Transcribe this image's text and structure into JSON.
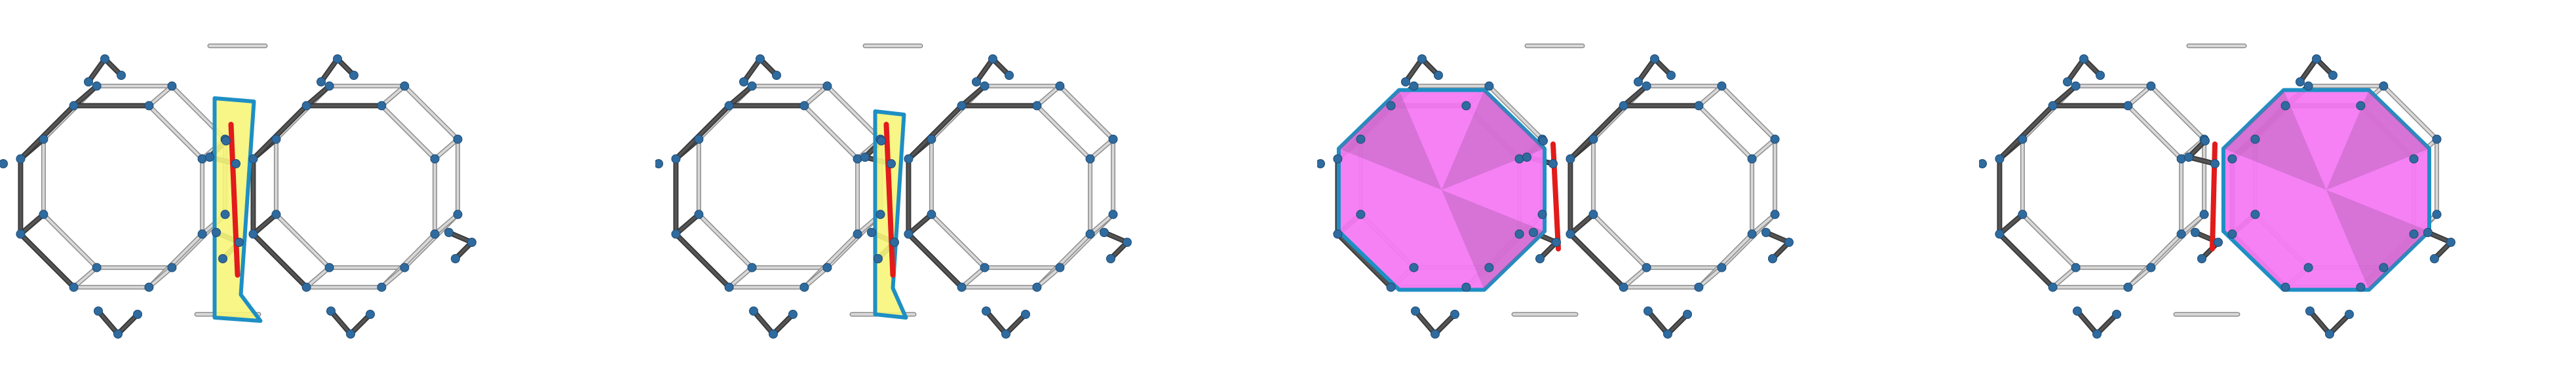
{
  "figure": {
    "panel_count": 4,
    "panels": [
      {
        "id": "panel-1",
        "highlight": "yellow-quad-face",
        "highlight_side": "bridge",
        "red_edge": true
      },
      {
        "id": "panel-2",
        "highlight": "yellow-quad-face",
        "highlight_side": "bridge-twisted",
        "red_edge": true
      },
      {
        "id": "panel-3",
        "highlight": "magenta-ring-face",
        "highlight_side": "left-ring",
        "red_edge": true
      },
      {
        "id": "panel-4",
        "highlight": "magenta-ring-face",
        "highlight_side": "right-ring",
        "red_edge": true
      }
    ]
  },
  "colors": {
    "background": "#ffffff",
    "rod_light": "#d8d8d8",
    "rod_dark": "#555555",
    "node": "#2f6b9f",
    "face_outline": "#1e8fc4",
    "yellow_face": "#f6f57a",
    "magenta_face": "#f47af4",
    "red_edge": "#e21b1b"
  },
  "icons": {
    "node": "sphere-node",
    "rod": "cylinder-rod"
  }
}
